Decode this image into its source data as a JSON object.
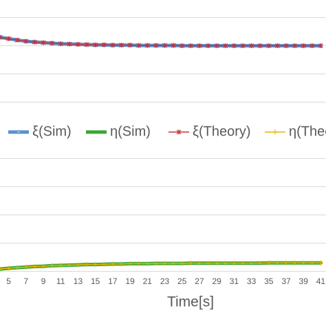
{
  "chart_data": {
    "type": "line",
    "x_label": "Time[s]",
    "x": [
      4,
      5,
      6,
      7,
      8,
      9,
      10,
      11,
      12,
      13,
      14,
      15,
      16,
      17,
      18,
      19,
      20,
      21,
      22,
      23,
      24,
      25,
      26,
      27,
      28,
      29,
      30,
      31,
      32,
      33,
      34,
      35,
      36,
      37,
      38,
      39,
      40,
      41
    ],
    "xlim": [
      4,
      41.6
    ],
    "xticks": [
      5,
      7,
      9,
      11,
      13,
      15,
      17,
      19,
      21,
      23,
      25,
      27,
      29,
      31,
      33,
      35,
      37,
      39,
      41
    ],
    "ylim": [
      0,
      10
    ],
    "yticks": [
      0,
      1,
      2,
      3,
      4,
      5,
      6,
      7,
      8,
      9
    ],
    "grid": true,
    "series": [
      {
        "name": "ξ(Sim)",
        "color": "#5b8fd0",
        "values": [
          8.3,
          8.25,
          8.2,
          8.16,
          8.13,
          8.11,
          8.09,
          8.07,
          8.06,
          8.05,
          8.04,
          8.03,
          8.03,
          8.02,
          8.02,
          8.02,
          8.01,
          8.01,
          8.01,
          8.01,
          8.01,
          8.0,
          8.0,
          8.0,
          8.0,
          8.0,
          8.0,
          8.0,
          8.0,
          8.0,
          8.0,
          8.0,
          8.0,
          8.0,
          8.0,
          8.0,
          8.0,
          8.0
        ]
      },
      {
        "name": "η(Sim)",
        "color": "#3aa635",
        "values": [
          0.08,
          0.11,
          0.13,
          0.15,
          0.17,
          0.18,
          0.2,
          0.21,
          0.22,
          0.23,
          0.24,
          0.24,
          0.25,
          0.26,
          0.26,
          0.27,
          0.27,
          0.27,
          0.28,
          0.28,
          0.28,
          0.28,
          0.29,
          0.29,
          0.29,
          0.29,
          0.29,
          0.29,
          0.29,
          0.29,
          0.29,
          0.3,
          0.3,
          0.3,
          0.3,
          0.3,
          0.3,
          0.3
        ]
      },
      {
        "name": "ξ(Theory)",
        "color": "#c0333c",
        "values": [
          8.3,
          8.25,
          8.2,
          8.16,
          8.13,
          8.11,
          8.09,
          8.07,
          8.06,
          8.05,
          8.04,
          8.03,
          8.03,
          8.02,
          8.02,
          8.02,
          8.01,
          8.01,
          8.01,
          8.01,
          8.01,
          8.0,
          8.0,
          8.0,
          8.0,
          8.0,
          8.0,
          8.0,
          8.0,
          8.0,
          8.0,
          8.0,
          8.0,
          8.0,
          8.0,
          8.0,
          8.0,
          8.0
        ]
      },
      {
        "name": "η(Theory)",
        "color": "#e6b800",
        "values": [
          0.08,
          0.11,
          0.13,
          0.15,
          0.17,
          0.18,
          0.2,
          0.21,
          0.22,
          0.23,
          0.24,
          0.24,
          0.25,
          0.26,
          0.26,
          0.27,
          0.27,
          0.27,
          0.28,
          0.28,
          0.28,
          0.28,
          0.29,
          0.29,
          0.29,
          0.29,
          0.29,
          0.29,
          0.29,
          0.29,
          0.29,
          0.3,
          0.3,
          0.3,
          0.3,
          0.3,
          0.3,
          0.3
        ]
      }
    ]
  }
}
